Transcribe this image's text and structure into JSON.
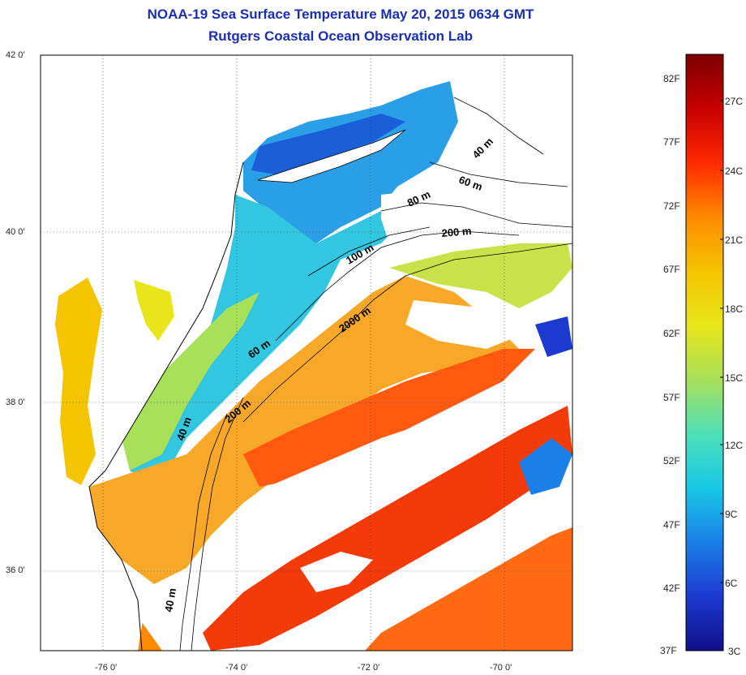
{
  "title": {
    "line1": "NOAA-19 Sea Surface Temperature May 20, 2015 0634 GMT",
    "line2": "Rutgers Coastal Ocean Observation Lab"
  },
  "map": {
    "lat_labels": [
      "42 0'",
      "40 0'",
      "38 0'",
      "36 0'"
    ],
    "lon_labels": [
      "-76 0'",
      "-74 0'",
      "-72 0'",
      "-70 0'"
    ],
    "depth_labels": [
      "40 m",
      "60 m",
      "80 m",
      "200 m",
      "100 m",
      "2000 m",
      "60 m",
      "200 m",
      "40 m",
      "40 m"
    ]
  },
  "colorbar": {
    "f_labels": [
      "82F",
      "77F",
      "72F",
      "67F",
      "62F",
      "57F",
      "52F",
      "47F",
      "42F",
      "37F"
    ],
    "c_labels": [
      "27C",
      "24C",
      "21C",
      "18C",
      "15C",
      "12C",
      "9C",
      "6C",
      "3C"
    ],
    "stops": [
      "#7d0000",
      "#c80000",
      "#ff2a00",
      "#ff8a00",
      "#f5c400",
      "#e8e61a",
      "#a8e05a",
      "#4fe0b8",
      "#18c8e6",
      "#1b7fe8",
      "#1c39d0",
      "#10108a"
    ]
  }
}
